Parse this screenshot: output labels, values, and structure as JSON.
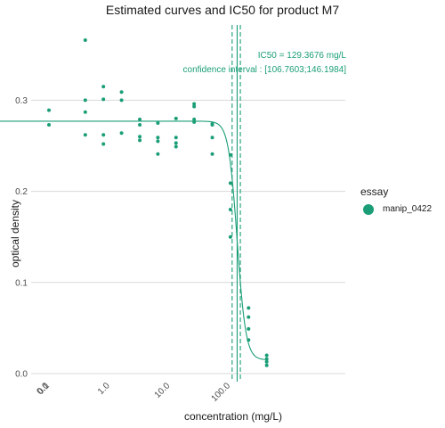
{
  "chart_data": {
    "type": "scatter",
    "title": "Estimated curves and IC50 for product M7",
    "xlabel": "concentration (mg/L)",
    "ylabel": "optical density",
    "x_scale": "log10 (0 shown at far left)",
    "x_ticks": [
      "0.0",
      "0.1",
      "1.0",
      "10.0",
      "100.0"
    ],
    "x_tick_values": [
      0,
      0.1,
      1,
      10,
      100
    ],
    "y_ticks": [
      "0.0",
      "0.1",
      "0.2",
      "0.3"
    ],
    "y_tick_values": [
      0,
      0.1,
      0.2,
      0.3
    ],
    "ylim": [
      -0.01,
      0.375
    ],
    "grid": "horizontal major lines only",
    "legend": {
      "title": "essay",
      "position": "right",
      "entries": [
        "manip_0422"
      ]
    },
    "color": "#1b9e77",
    "annotations": {
      "ic50_label": "IC50 = 129.3676 mg/L",
      "ci_label": "confidence interval : [106.7603;146.1984]"
    },
    "ic50": 129.3676,
    "confidence_interval": [
      106.7603,
      146.1984
    ],
    "fitted_curve": {
      "top": 0.277,
      "bottom": 0.015,
      "ic50": 129.3676,
      "hill": 6
    },
    "series": [
      {
        "name": "manip_0422",
        "points": [
          [
            0,
            0.289
          ],
          [
            0,
            0.273
          ],
          [
            0.39,
            0.366
          ],
          [
            0.39,
            0.3
          ],
          [
            0.39,
            0.287
          ],
          [
            0.39,
            0.262
          ],
          [
            0.78,
            0.315
          ],
          [
            0.78,
            0.301
          ],
          [
            0.78,
            0.262
          ],
          [
            0.78,
            0.252
          ],
          [
            1.56,
            0.309
          ],
          [
            1.56,
            0.3
          ],
          [
            1.56,
            0.264
          ],
          [
            3.13,
            0.279
          ],
          [
            3.13,
            0.273
          ],
          [
            3.13,
            0.26
          ],
          [
            3.13,
            0.256
          ],
          [
            6.25,
            0.275
          ],
          [
            6.25,
            0.259
          ],
          [
            6.25,
            0.255
          ],
          [
            6.25,
            0.241
          ],
          [
            12.5,
            0.28
          ],
          [
            12.5,
            0.259
          ],
          [
            12.5,
            0.253
          ],
          [
            12.5,
            0.249
          ],
          [
            25,
            0.296
          ],
          [
            25,
            0.293
          ],
          [
            25,
            0.279
          ],
          [
            25,
            0.276
          ],
          [
            50,
            0.274
          ],
          [
            50,
            0.273
          ],
          [
            50,
            0.259
          ],
          [
            50,
            0.241
          ],
          [
            100,
            0.24
          ],
          [
            100,
            0.209
          ],
          [
            100,
            0.18
          ],
          [
            100,
            0.15
          ],
          [
            200,
            0.072
          ],
          [
            200,
            0.062
          ],
          [
            200,
            0.049
          ],
          [
            200,
            0.037
          ],
          [
            400,
            0.02
          ],
          [
            400,
            0.016
          ],
          [
            400,
            0.013
          ],
          [
            400,
            0.009
          ]
        ]
      }
    ]
  }
}
